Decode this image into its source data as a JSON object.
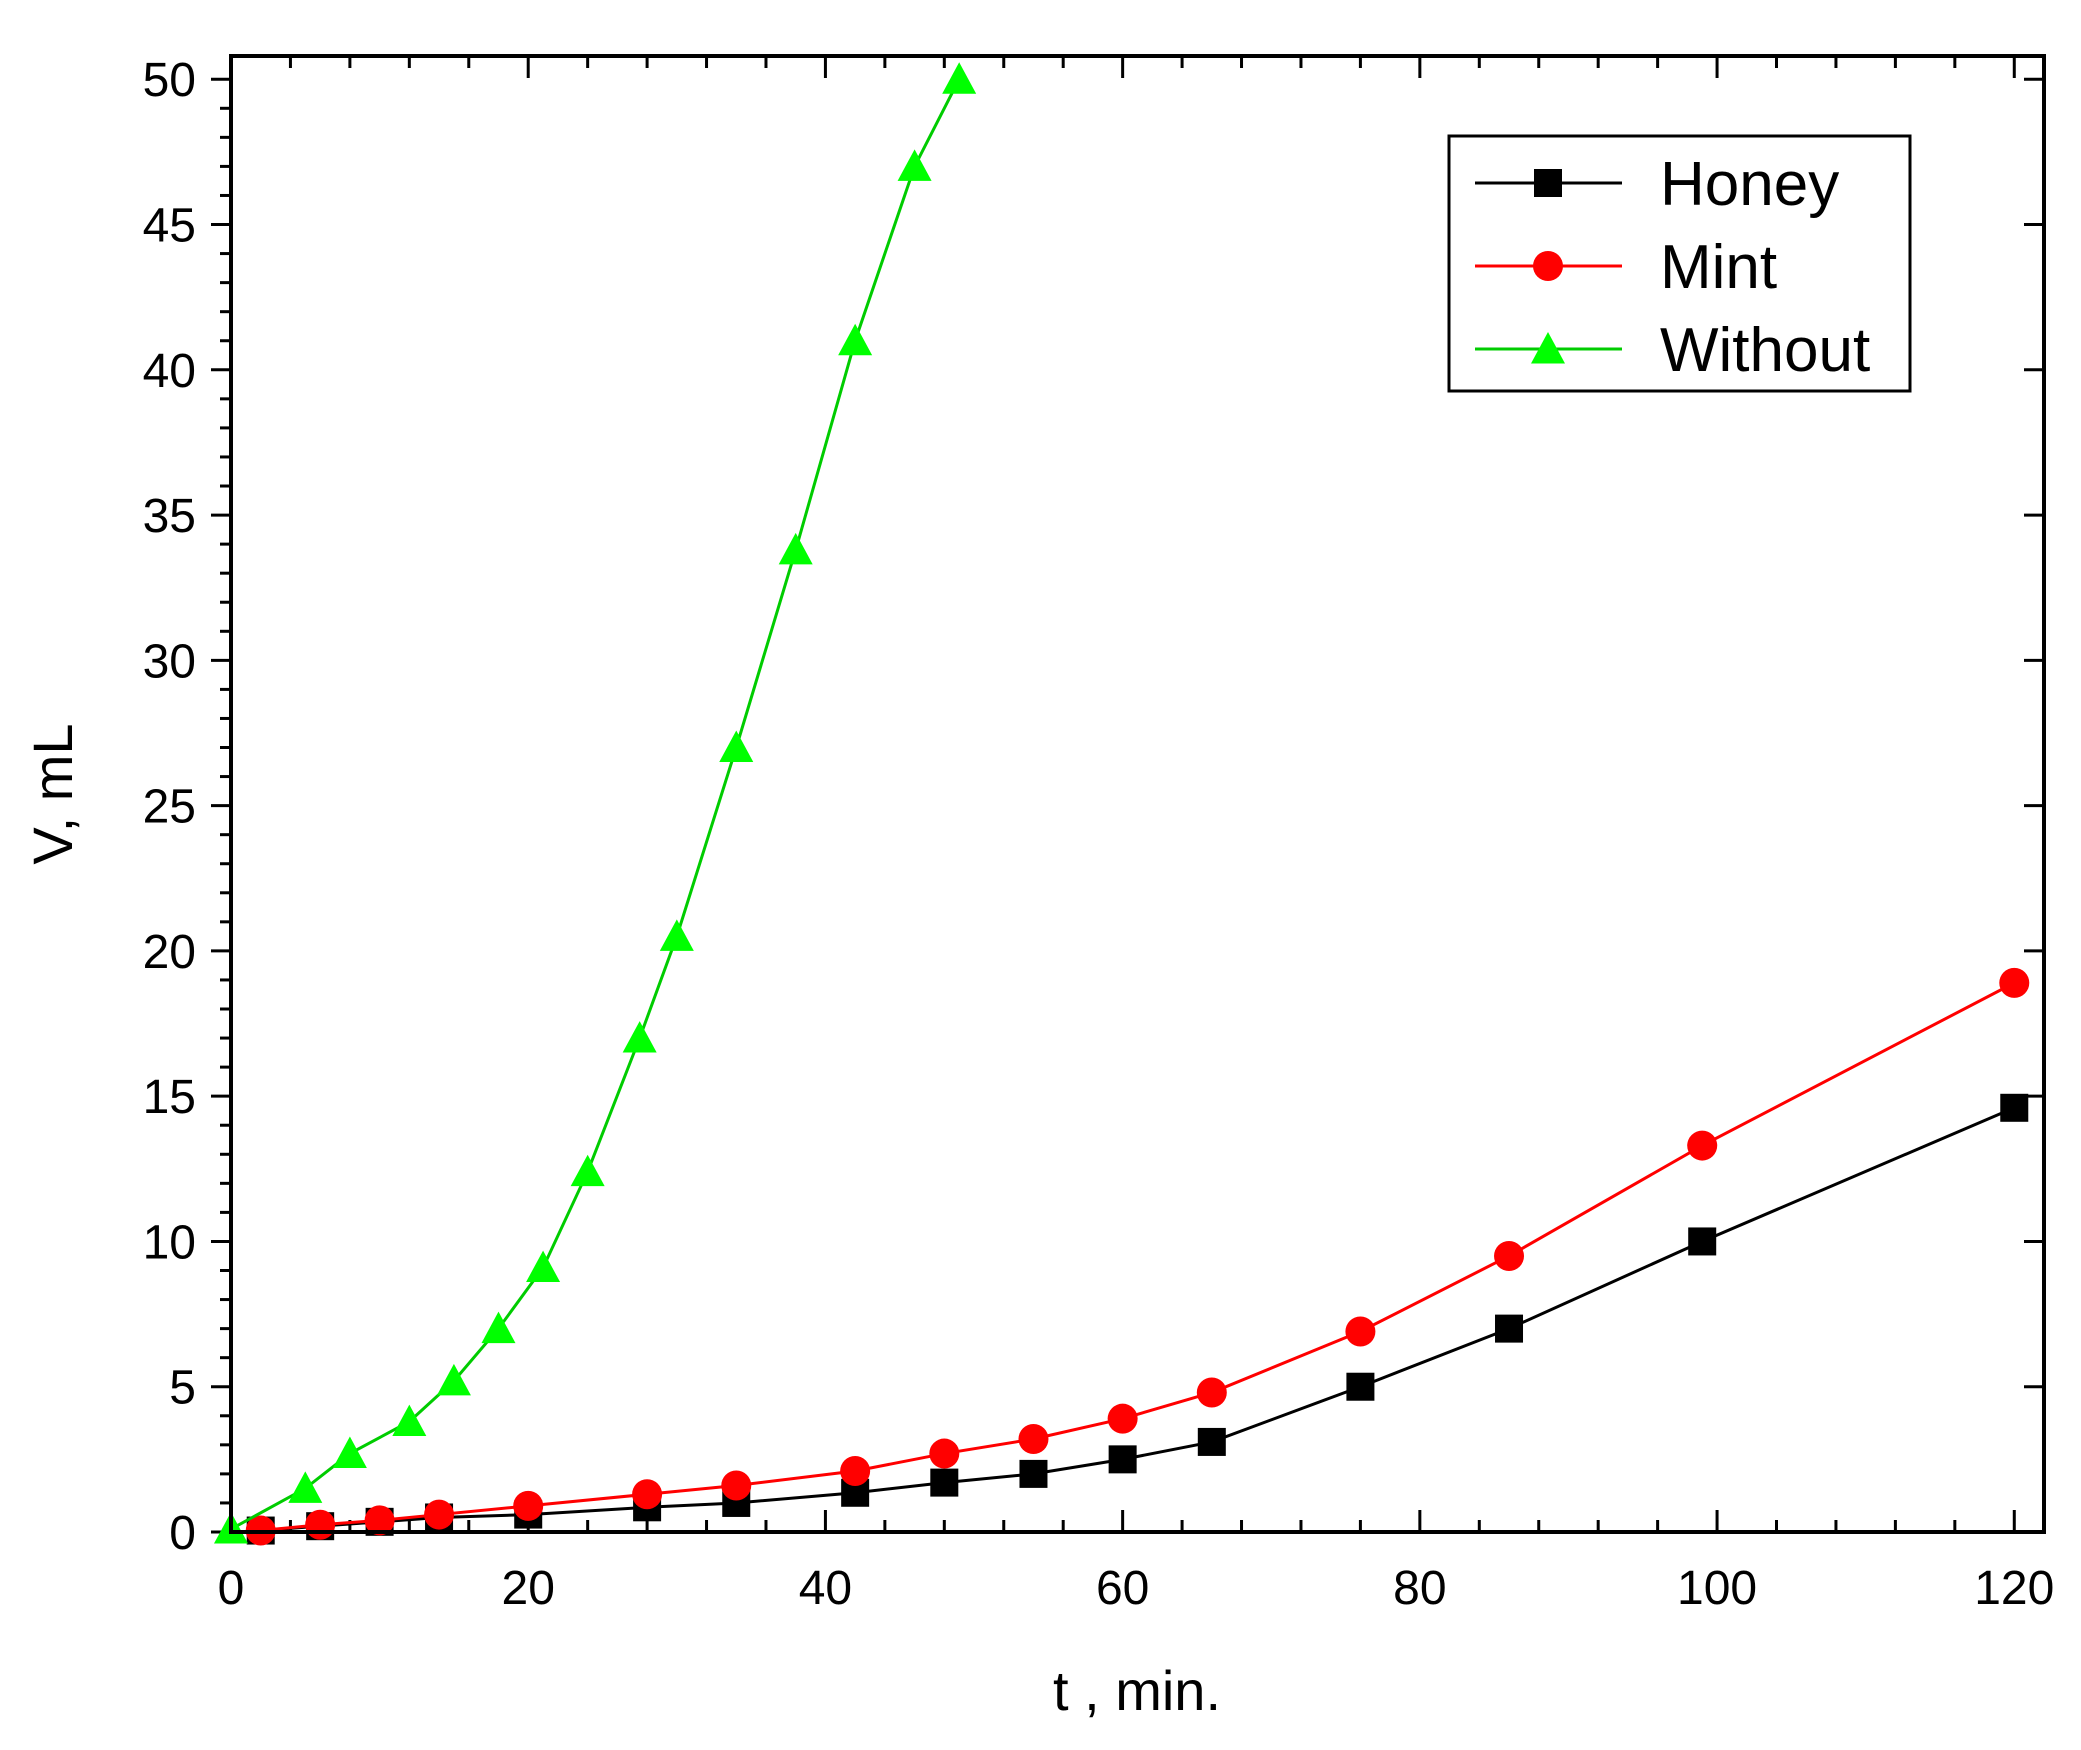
{
  "chart_data": {
    "type": "line",
    "title": "",
    "xlabel": "t , min.",
    "ylabel": "V, mL",
    "xlim": [
      0,
      122
    ],
    "ylim": [
      0,
      50.8
    ],
    "xticks": [
      0,
      20,
      40,
      60,
      80,
      100,
      120
    ],
    "yticks": [
      0,
      5,
      10,
      15,
      20,
      25,
      30,
      35,
      40,
      45,
      50
    ],
    "legend_position": "top-right",
    "series": [
      {
        "name": "Honey",
        "color": "#000000",
        "marker": "square",
        "x": [
          2,
          6,
          10,
          14,
          20,
          28,
          34,
          42,
          48,
          54,
          60,
          66,
          76,
          86,
          99,
          120
        ],
        "y": [
          0.05,
          0.2,
          0.35,
          0.5,
          0.6,
          0.85,
          1.0,
          1.35,
          1.7,
          2.0,
          2.5,
          3.1,
          5.0,
          7.0,
          10.0,
          14.6
        ]
      },
      {
        "name": "Mint",
        "color": "#ff0000",
        "marker": "circle",
        "x": [
          2,
          6,
          10,
          14,
          20,
          28,
          34,
          42,
          48,
          54,
          60,
          66,
          76,
          86,
          99,
          120
        ],
        "y": [
          0.05,
          0.25,
          0.4,
          0.6,
          0.9,
          1.3,
          1.6,
          2.1,
          2.7,
          3.2,
          3.9,
          4.8,
          6.9,
          9.5,
          13.3,
          18.9
        ]
      },
      {
        "name": "Without",
        "color": "#00ff00",
        "line_color": "#00cc00",
        "marker": "triangle",
        "x": [
          0,
          5,
          8,
          12,
          15,
          18,
          21,
          24,
          27.5,
          30,
          34,
          38,
          42,
          46,
          49
        ],
        "y": [
          0.1,
          1.5,
          2.7,
          3.8,
          5.2,
          7.0,
          9.1,
          12.4,
          17.0,
          20.5,
          27.0,
          33.8,
          41.0,
          47.0,
          50.0
        ]
      }
    ]
  }
}
